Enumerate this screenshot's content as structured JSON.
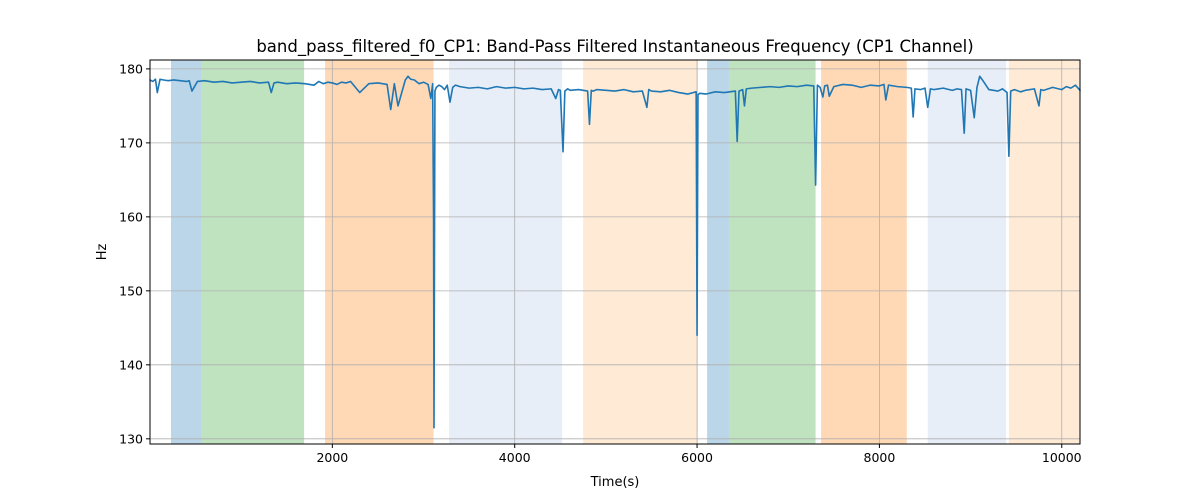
{
  "chart_data": {
    "type": "line",
    "title": "band_pass_filtered_f0_CP1: Band-Pass Filtered Instantaneous Frequency (CP1 Channel)",
    "xlabel": "Time(s)",
    "ylabel": "Hz",
    "xlim": [
      0,
      10200
    ],
    "ylim": [
      129.3,
      181.2
    ],
    "xticks": [
      2000,
      4000,
      6000,
      8000,
      10000
    ],
    "yticks": [
      130,
      140,
      150,
      160,
      170,
      180
    ],
    "grid": true,
    "line_color": "#1f77b4",
    "bands": [
      {
        "x0": 230,
        "x1": 560,
        "color": "#1f77b4",
        "opacity": 0.3
      },
      {
        "x0": 560,
        "x1": 1690,
        "color": "#2ca02c",
        "opacity": 0.3
      },
      {
        "x0": 1920,
        "x1": 3110,
        "color": "#ff7f0e",
        "opacity": 0.3
      },
      {
        "x0": 3280,
        "x1": 4520,
        "color": "#aec7e8",
        "opacity": 0.3
      },
      {
        "x0": 4750,
        "x1": 6010,
        "color": "#ffbb78",
        "opacity": 0.3
      },
      {
        "x0": 6110,
        "x1": 6350,
        "color": "#1f77b4",
        "opacity": 0.3
      },
      {
        "x0": 6350,
        "x1": 7300,
        "color": "#2ca02c",
        "opacity": 0.3
      },
      {
        "x0": 7360,
        "x1": 8300,
        "color": "#ff7f0e",
        "opacity": 0.3
      },
      {
        "x0": 8530,
        "x1": 9390,
        "color": "#aec7e8",
        "opacity": 0.3
      },
      {
        "x0": 9420,
        "x1": 10200,
        "color": "#ffbb78",
        "opacity": 0.3
      }
    ],
    "series": [
      {
        "name": "band_pass_filtered_f0_CP1",
        "x": [
          0,
          30,
          60,
          80,
          110,
          150,
          200,
          260,
          330,
          400,
          430,
          460,
          520,
          600,
          700,
          800,
          900,
          1000,
          1100,
          1200,
          1300,
          1330,
          1360,
          1400,
          1500,
          1600,
          1700,
          1800,
          1850,
          1900,
          1950,
          2000,
          2050,
          2100,
          2150,
          2200,
          2300,
          2400,
          2500,
          2600,
          2640,
          2680,
          2720,
          2800,
          2830,
          2860,
          2900,
          2950,
          3000,
          3050,
          3080,
          3100,
          3110,
          3115,
          3125,
          3140,
          3170,
          3200,
          3230,
          3260,
          3290,
          3320,
          3350,
          3400,
          3500,
          3600,
          3700,
          3800,
          3900,
          4000,
          4100,
          4200,
          4300,
          4400,
          4450,
          4480,
          4500,
          4530,
          4550,
          4580,
          4610,
          4700,
          4800,
          4820,
          4840,
          4860,
          4900,
          5000,
          5100,
          5200,
          5300,
          5400,
          5450,
          5470,
          5500,
          5600,
          5700,
          5800,
          5900,
          5990,
          6000,
          6010,
          6030,
          6100,
          6200,
          6300,
          6420,
          6440,
          6460,
          6500,
          6520,
          6540,
          6600,
          6700,
          6800,
          6900,
          7000,
          7100,
          7200,
          7280,
          7300,
          7320,
          7350,
          7380,
          7400,
          7430,
          7450,
          7500,
          7600,
          7700,
          7800,
          7900,
          8000,
          8050,
          8070,
          8100,
          8200,
          8300,
          8350,
          8370,
          8390,
          8450,
          8500,
          8530,
          8560,
          8600,
          8700,
          8800,
          8850,
          8900,
          8930,
          8950,
          9000,
          9040,
          9070,
          9100,
          9130,
          9200,
          9300,
          9350,
          9400,
          9420,
          9440,
          9480,
          9550,
          9600,
          9700,
          9750,
          9770,
          9800,
          9900,
          10000,
          10050,
          10100,
          10150,
          10200
        ],
        "y": [
          178.5,
          178.3,
          178.6,
          176.8,
          178.6,
          178.5,
          178.4,
          178.5,
          178.4,
          178.3,
          178.4,
          177.0,
          178.3,
          178.4,
          178.2,
          178.3,
          178.1,
          178.2,
          178.3,
          178.1,
          178.2,
          176.8,
          178.1,
          178.2,
          178.0,
          178.1,
          178.0,
          177.8,
          178.3,
          178.0,
          178.2,
          178.1,
          177.9,
          178.2,
          178.1,
          178.3,
          176.8,
          178.0,
          178.1,
          177.9,
          174.5,
          178.0,
          175.0,
          178.5,
          179.0,
          178.6,
          178.5,
          178.0,
          178.2,
          177.9,
          176.0,
          178.0,
          160.0,
          131.5,
          177.0,
          177.5,
          177.8,
          177.6,
          177.2,
          177.8,
          175.5,
          177.5,
          177.8,
          177.6,
          177.4,
          177.5,
          177.3,
          177.6,
          177.4,
          177.5,
          177.3,
          177.4,
          177.2,
          177.3,
          176.0,
          177.2,
          177.1,
          168.8,
          177.0,
          177.3,
          177.1,
          177.2,
          177.0,
          172.5,
          177.1,
          177.0,
          177.2,
          177.1,
          177.0,
          177.2,
          176.9,
          177.0,
          174.8,
          177.2,
          177.0,
          176.9,
          177.1,
          176.8,
          176.6,
          176.9,
          144.0,
          176.5,
          176.7,
          176.6,
          176.9,
          176.8,
          177.0,
          170.2,
          177.0,
          177.2,
          175.0,
          177.3,
          177.4,
          177.5,
          177.6,
          177.5,
          177.7,
          177.6,
          177.8,
          177.7,
          164.3,
          177.8,
          177.5,
          176.2,
          177.7,
          177.8,
          176.3,
          177.6,
          177.9,
          177.8,
          177.5,
          177.8,
          177.7,
          177.9,
          175.8,
          177.8,
          177.6,
          177.5,
          177.4,
          173.5,
          177.3,
          177.2,
          177.4,
          174.8,
          177.3,
          177.2,
          177.4,
          177.1,
          177.3,
          177.2,
          171.3,
          177.3,
          177.1,
          173.4,
          177.5,
          179.0,
          178.5,
          177.2,
          177.0,
          177.3,
          176.8,
          168.2,
          177.0,
          177.2,
          176.9,
          177.1,
          177.3,
          175.0,
          177.2,
          177.1,
          177.5,
          177.2,
          177.6,
          177.4,
          177.8,
          177.1
        ]
      }
    ]
  }
}
